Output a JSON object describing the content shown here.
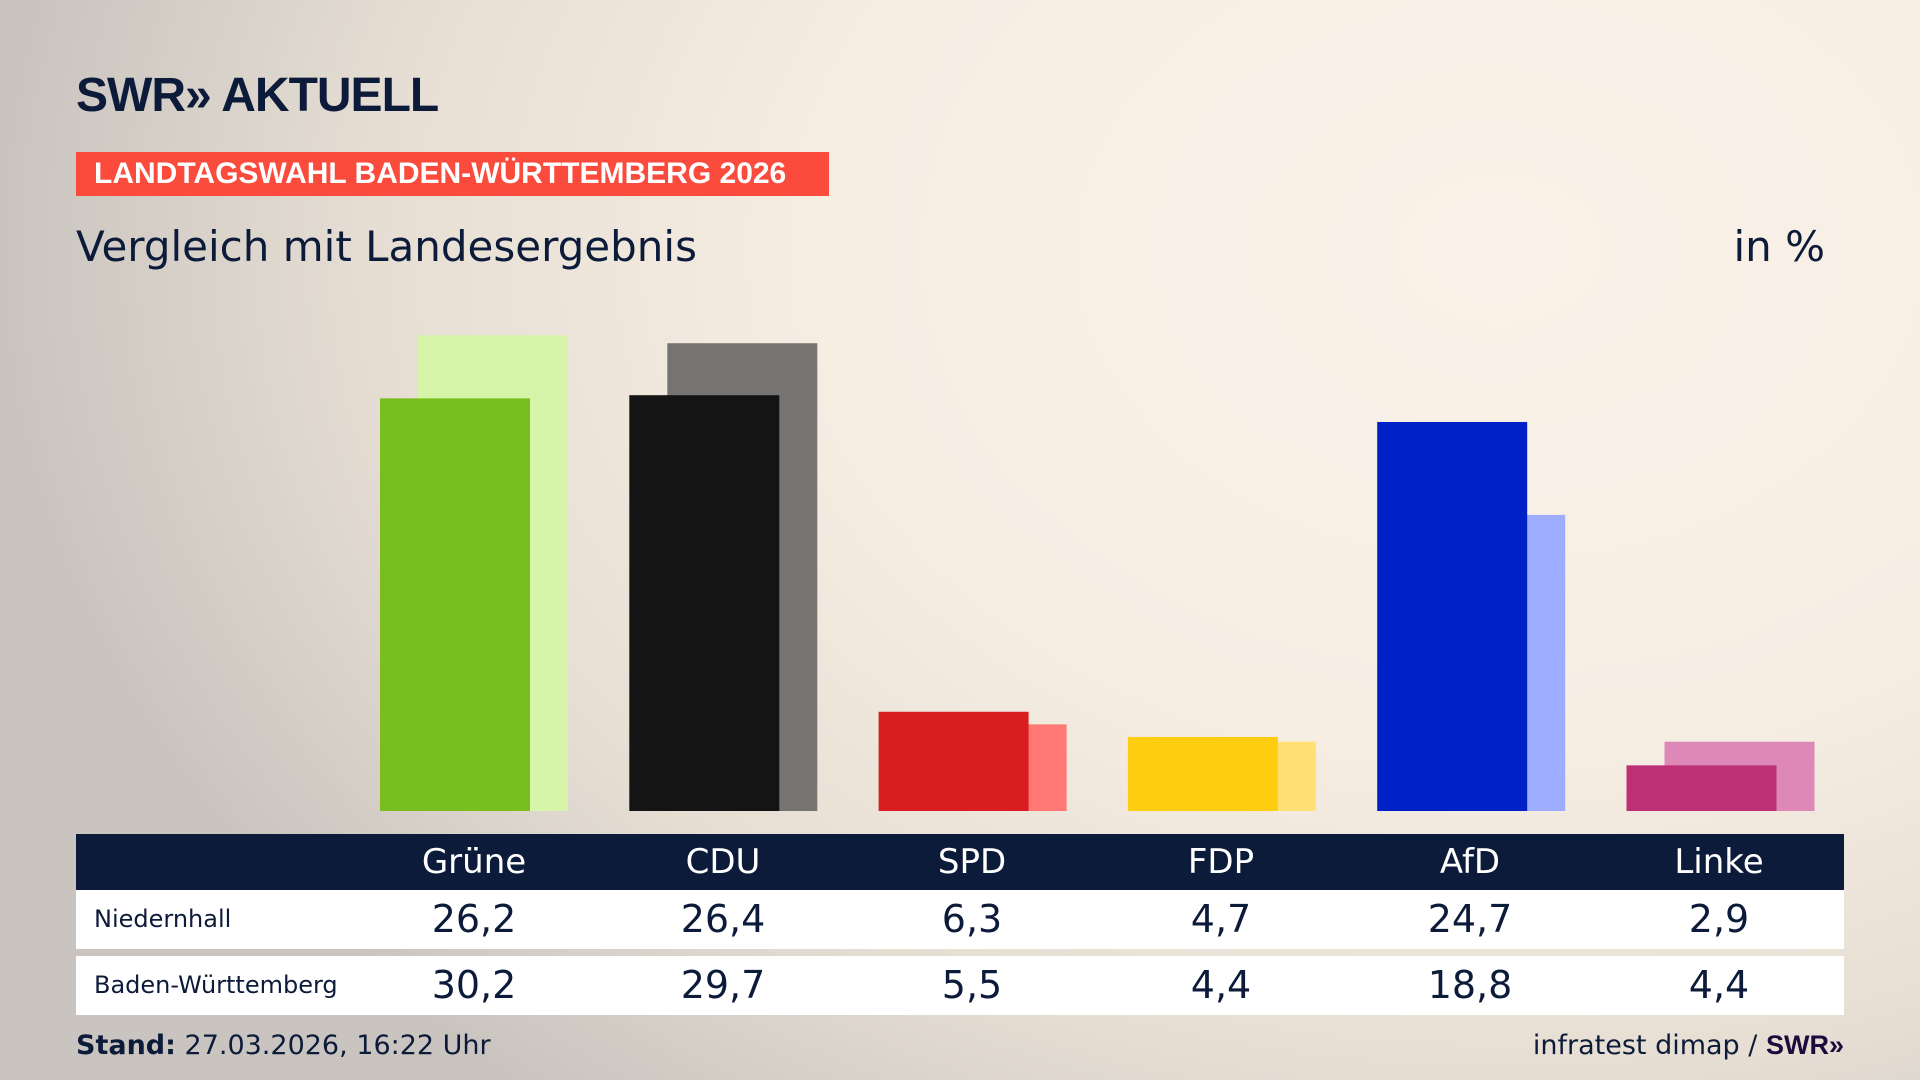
{
  "header": {
    "logo": "SWR» AKTUELL",
    "banner": "LANDTAGSWAHL BADEN-WÜRTTEMBERG 2026",
    "subtitle": "Vergleich mit Landesergebnis",
    "unit": "in %"
  },
  "chart_data": {
    "type": "bar",
    "categories": [
      "Grüne",
      "CDU",
      "SPD",
      "FDP",
      "AfD",
      "Linke"
    ],
    "series": [
      {
        "name": "Niedernhall",
        "values": [
          26.2,
          26.4,
          6.3,
          4.7,
          24.7,
          2.9
        ],
        "colors": [
          "#78be1e",
          "#141414",
          "#d81e1e",
          "#ffcd0f",
          "#0021c8",
          "#be3075"
        ]
      },
      {
        "name": "Baden-Württemberg",
        "values": [
          30.2,
          29.7,
          5.5,
          4.4,
          18.8,
          4.4
        ],
        "colors": [
          "#d7f5a8",
          "#757472",
          "#ff7873",
          "#ffe173",
          "#9eadff",
          "#de88b8"
        ]
      }
    ]
  },
  "table": {
    "headers": [
      "Grüne",
      "CDU",
      "SPD",
      "FDP",
      "AfD",
      "Linke"
    ],
    "rows": [
      {
        "label": "Niedernhall",
        "values": [
          "26,2",
          "26,4",
          "6,3",
          "4,7",
          "24,7",
          "2,9"
        ]
      },
      {
        "label": "Baden-Württemberg",
        "values": [
          "30,2",
          "29,7",
          "5,5",
          "4,4",
          "18,8",
          "4,4"
        ]
      }
    ]
  },
  "footer": {
    "stand_label": "Stand:",
    "stand_value": "27.03.2026, 16:22 Uhr",
    "source": "infratest dimap /",
    "source_logo": "SWR»"
  }
}
